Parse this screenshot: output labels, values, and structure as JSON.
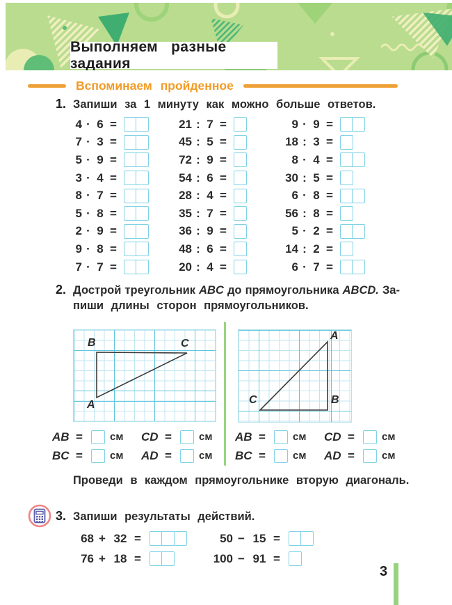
{
  "header": {
    "title": "Выполняем  разные  задания"
  },
  "section": {
    "heading": "Вспоминаем  пройденное"
  },
  "colors": {
    "band_green": "#b9dc8e",
    "shape_green_dark": "#3fae70",
    "shape_green_mid": "#8ccb71",
    "shape_cream": "#efefc0",
    "accent_orange": "#f0a136",
    "box_cyan": "#7fd2e6",
    "grid_light": "#bfe6f0",
    "grid_bold": "#5fc5de",
    "separator_green": "#98d37f",
    "calc_ring_pink": "#ee8585",
    "calc_purple": "#5b5ea8",
    "text": "#2b2b2b"
  },
  "task1": {
    "number": "1.",
    "text": "Запиши  за  1  минуту  как  можно  больше  ответов.",
    "columns": [
      {
        "items": [
          {
            "a": "4",
            "op": "·",
            "b": "6",
            "cells": 2
          },
          {
            "a": "7",
            "op": "·",
            "b": "3",
            "cells": 2
          },
          {
            "a": "5",
            "op": "·",
            "b": "9",
            "cells": 2
          },
          {
            "a": "3",
            "op": "·",
            "b": "4",
            "cells": 2
          },
          {
            "a": "8",
            "op": "·",
            "b": "7",
            "cells": 2
          },
          {
            "a": "5",
            "op": "·",
            "b": "8",
            "cells": 2
          },
          {
            "a": "2",
            "op": "·",
            "b": "9",
            "cells": 2
          },
          {
            "a": "9",
            "op": "·",
            "b": "8",
            "cells": 2
          },
          {
            "a": "7",
            "op": "·",
            "b": "7",
            "cells": 2
          }
        ]
      },
      {
        "items": [
          {
            "a": "21",
            "op": ":",
            "b": "7",
            "cells": 1
          },
          {
            "a": "45",
            "op": ":",
            "b": "5",
            "cells": 1
          },
          {
            "a": "72",
            "op": ":",
            "b": "9",
            "cells": 1
          },
          {
            "a": "54",
            "op": ":",
            "b": "6",
            "cells": 1
          },
          {
            "a": "28",
            "op": ":",
            "b": "4",
            "cells": 1
          },
          {
            "a": "35",
            "op": ":",
            "b": "7",
            "cells": 1
          },
          {
            "a": "36",
            "op": ":",
            "b": "9",
            "cells": 1
          },
          {
            "a": "48",
            "op": ":",
            "b": "6",
            "cells": 1
          },
          {
            "a": "20",
            "op": ":",
            "b": "4",
            "cells": 1
          }
        ]
      },
      {
        "items": [
          {
            "a": "9",
            "op": "·",
            "b": "9",
            "cells": 2
          },
          {
            "a": "18",
            "op": ":",
            "b": "3",
            "cells": 1
          },
          {
            "a": "8",
            "op": "·",
            "b": "4",
            "cells": 2
          },
          {
            "a": "30",
            "op": ":",
            "b": "5",
            "cells": 1
          },
          {
            "a": "6",
            "op": "·",
            "b": "8",
            "cells": 2
          },
          {
            "a": "56",
            "op": ":",
            "b": "8",
            "cells": 1
          },
          {
            "a": "5",
            "op": "·",
            "b": "2",
            "cells": 2
          },
          {
            "a": "14",
            "op": ":",
            "b": "2",
            "cells": 1
          },
          {
            "a": "6",
            "op": "·",
            "b": "7",
            "cells": 2
          }
        ]
      }
    ]
  },
  "task2": {
    "number": "2.",
    "line1_parts": [
      {
        "t": "Дострой"
      },
      {
        "t": "треугольник"
      },
      {
        "t": "ABC",
        "i": true
      },
      {
        "t": "до"
      },
      {
        "t": "прямоугольника"
      },
      {
        "t": "ABCD.",
        "i": true
      },
      {
        "t": "За-"
      }
    ],
    "line2": "пиши  длины  сторон  прямоугольников.",
    "grids": [
      {
        "id": "left",
        "labels": {
          "A": "A",
          "B": "B",
          "C": "C"
        }
      },
      {
        "id": "right",
        "labels": {
          "A": "A",
          "B": "B",
          "C": "C"
        }
      }
    ],
    "measurements": {
      "unit": "см",
      "rows": [
        [
          "AB",
          "CD"
        ],
        [
          "BC",
          "AD"
        ]
      ]
    },
    "followup": "Проведи  в  каждом  прямоугольнике  вторую  диагональ."
  },
  "task3": {
    "number": "3.",
    "text": "Запиши  результаты  действий.",
    "rows": [
      {
        "left": {
          "a": "68",
          "op": "+",
          "b": "32",
          "cells": 3
        },
        "right": {
          "a": "50",
          "op": "−",
          "b": "15",
          "cells": 2
        }
      },
      {
        "left": {
          "a": "76",
          "op": "+",
          "b": "18",
          "cells": 2
        },
        "right": {
          "a": "100",
          "op": "−",
          "b": "91",
          "cells": 1
        }
      }
    ]
  },
  "footer": {
    "page_number": "3"
  }
}
